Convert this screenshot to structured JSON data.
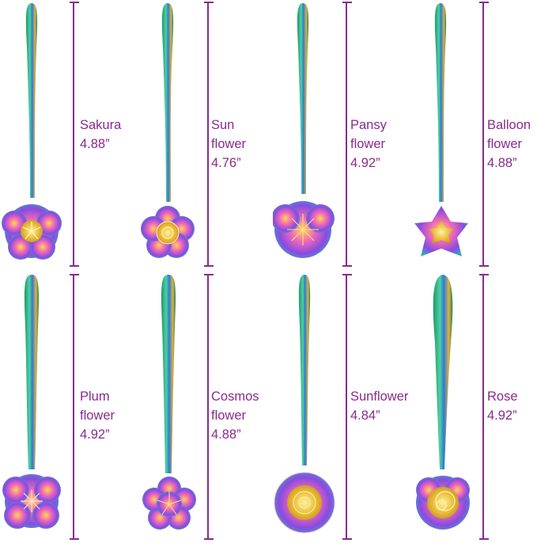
{
  "accent_color": "#8a2a8e",
  "items": [
    {
      "line1": "Sakura",
      "line2": "4.88”",
      "line3": "",
      "head": "sakura"
    },
    {
      "line1": "Sun",
      "line2": "flower",
      "line3": "4.76”",
      "head": "sun-flower"
    },
    {
      "line1": "Pansy",
      "line2": "flower",
      "line3": "4.92”",
      "head": "pansy"
    },
    {
      "line1": "Balloon",
      "line2": "flower",
      "line3": "4.88”",
      "head": "balloon"
    },
    {
      "line1": "Plum",
      "line2": "flower",
      "line3": "4.92”",
      "head": "plum"
    },
    {
      "line1": "Cosmos",
      "line2": "flower",
      "line3": "4.88”",
      "head": "cosmos"
    },
    {
      "line1": "Sunflower",
      "line2": "4.84”",
      "line3": "",
      "head": "sunflower"
    },
    {
      "line1": "Rose",
      "line2": "4.92”",
      "line3": "",
      "head": "rose"
    }
  ]
}
